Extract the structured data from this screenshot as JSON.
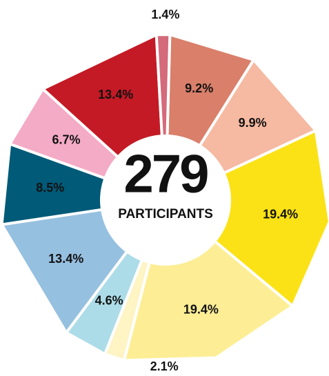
{
  "chart_data": {
    "type": "donut",
    "center_value": "279",
    "center_label": "PARTICIPANTS",
    "categories": [
      null,
      null,
      null,
      null,
      null,
      null,
      null,
      null,
      null,
      null,
      null
    ],
    "values": [
      9.2,
      9.9,
      19.4,
      19.4,
      2.1,
      4.6,
      13.4,
      8.5,
      6.7,
      13.4,
      1.4
    ],
    "value_labels": [
      "9.2%",
      "9.9%",
      "19.4%",
      "19.4%",
      "2.1%",
      "4.6%",
      "13.4%",
      "8.5%",
      "6.7%",
      "13.4%",
      "1.4%"
    ],
    "colors": [
      "#d97f6a",
      "#f6b9a1",
      "#fbe216",
      "#fdee96",
      "#fef4c4",
      "#acdce8",
      "#96c0e0",
      "#005a78",
      "#f4abc5",
      "#c41a25",
      "#d46a7a"
    ]
  }
}
